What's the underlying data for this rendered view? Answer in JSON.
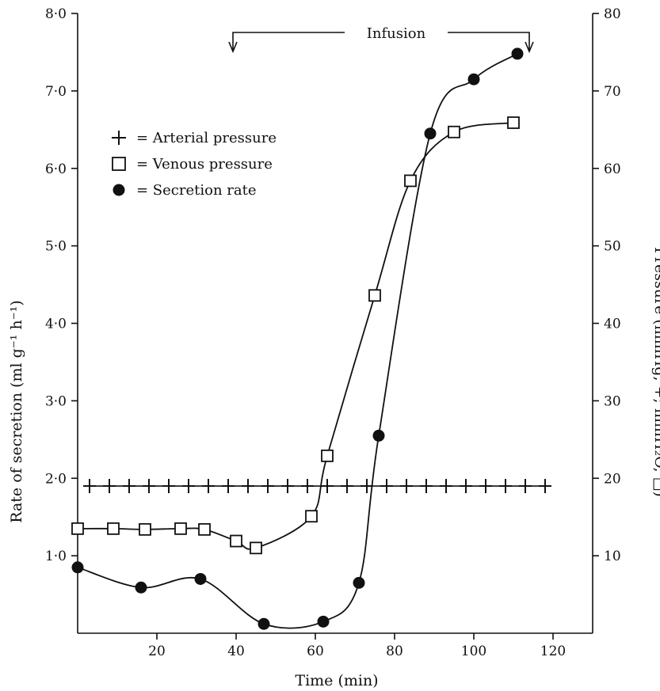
{
  "chart_data": {
    "type": "line",
    "xlabel": "Time (min)",
    "ylabel_left": "Rate of secretion (ml g⁻¹ h⁻¹)",
    "ylabel_right": "Pressure (mmHg, +; mmH₂O, □)",
    "xlim": [
      0,
      125
    ],
    "ylim_left": [
      0,
      8.0
    ],
    "ylim_right": [
      0,
      80
    ],
    "x_ticks": [
      "20",
      "40",
      "60",
      "80",
      "100",
      "120"
    ],
    "y_left_ticks": [
      "1·0",
      "2·0",
      "3·0",
      "4·0",
      "5·0",
      "6·0",
      "7·0",
      "8·0"
    ],
    "y_right_ticks": [
      "10",
      "20",
      "30",
      "40",
      "50",
      "60",
      "70",
      "80"
    ],
    "annotation": {
      "text": "Infusion",
      "x_start": 40,
      "x_end": 116
    },
    "legend": {
      "placement": "upper-left",
      "items": [
        {
          "marker": "+",
          "label": "= Arterial pressure"
        },
        {
          "marker": "□",
          "label": "= Venous pressure"
        },
        {
          "marker": "●",
          "label": "= Secretion rate"
        }
      ]
    },
    "series": [
      {
        "name": "Arterial pressure",
        "axis": "right",
        "marker": "plus",
        "x": [
          3,
          8,
          13,
          18,
          23,
          28,
          33,
          38,
          43,
          48,
          53,
          58,
          63,
          68,
          73,
          78,
          83,
          88,
          93,
          98,
          103,
          108,
          113,
          118
        ],
        "y": [
          19,
          19,
          19,
          19,
          19,
          19,
          19,
          19,
          19,
          19,
          19,
          19,
          19,
          19,
          19,
          19,
          19,
          19,
          19,
          19,
          19,
          19,
          19,
          19
        ]
      },
      {
        "name": "Venous pressure",
        "axis": "right",
        "marker": "square",
        "x": [
          0,
          9,
          17,
          26,
          32,
          40,
          45,
          59,
          63,
          75,
          84,
          95,
          110
        ],
        "y": [
          13.5,
          13.5,
          13.4,
          13.5,
          13.4,
          11.9,
          11.0,
          15.1,
          22.9,
          43.6,
          58.4,
          64.7,
          65.9
        ]
      },
      {
        "name": "Secretion rate",
        "axis": "left",
        "marker": "circle",
        "x": [
          0,
          16,
          31,
          47,
          62,
          71,
          76,
          89,
          100,
          111
        ],
        "y": [
          0.85,
          0.59,
          0.7,
          0.12,
          0.15,
          0.65,
          2.55,
          6.45,
          7.15,
          7.48
        ]
      }
    ]
  }
}
